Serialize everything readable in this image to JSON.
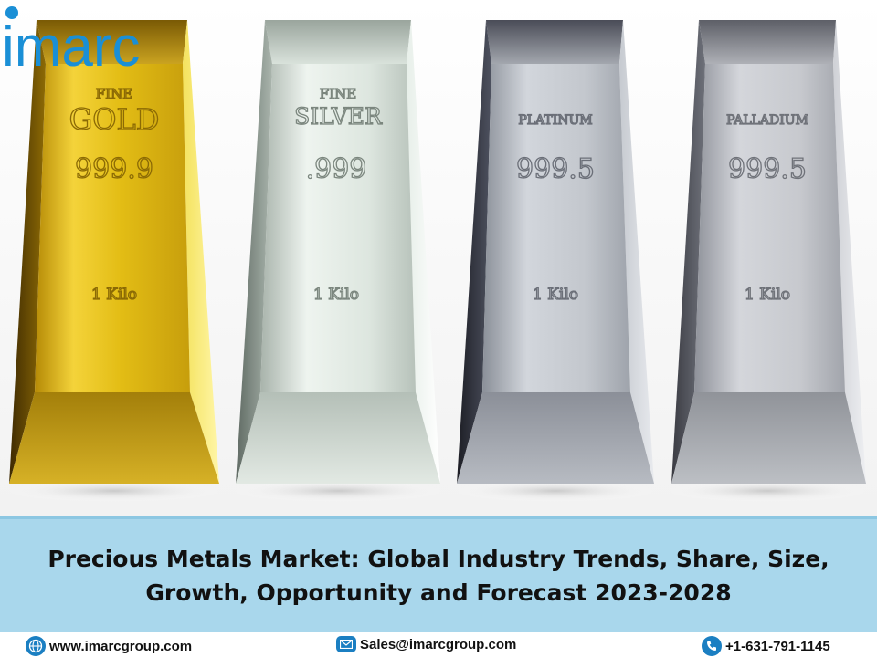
{
  "brand": {
    "logo_text": "imarc",
    "accent_color": "#1a8fd6"
  },
  "bars": [
    {
      "grade_top": "FINE",
      "grade_name": "GOLD",
      "purity": "999.9",
      "weight": "1 Kilo",
      "metal": "gold"
    },
    {
      "grade_top": "FINE",
      "grade_name": "SILVER",
      "purity": ".999",
      "weight": "1 Kilo",
      "metal": "silver"
    },
    {
      "grade_top": "",
      "grade_name": "PLATINUM",
      "purity": "999.5",
      "weight": "1 Kilo",
      "metal": "platinum"
    },
    {
      "grade_top": "",
      "grade_name": "PALLADIUM",
      "purity": "999.5",
      "weight": "1 Kilo",
      "metal": "palladium"
    }
  ],
  "banner": {
    "title_line1": "Precious Metals Market: Global Industry Trends, Share, Size,",
    "title_line2": "Growth, Opportunity and Forecast 2023-2028",
    "background_color": "#a9d7ec"
  },
  "footer": {
    "website": "www.imarcgroup.com",
    "email": "Sales@imarcgroup.com",
    "phone": "+1-631-791-1145",
    "website_icon": "globe-icon",
    "email_icon": "envelope-icon",
    "phone_icon": "phone-icon"
  }
}
